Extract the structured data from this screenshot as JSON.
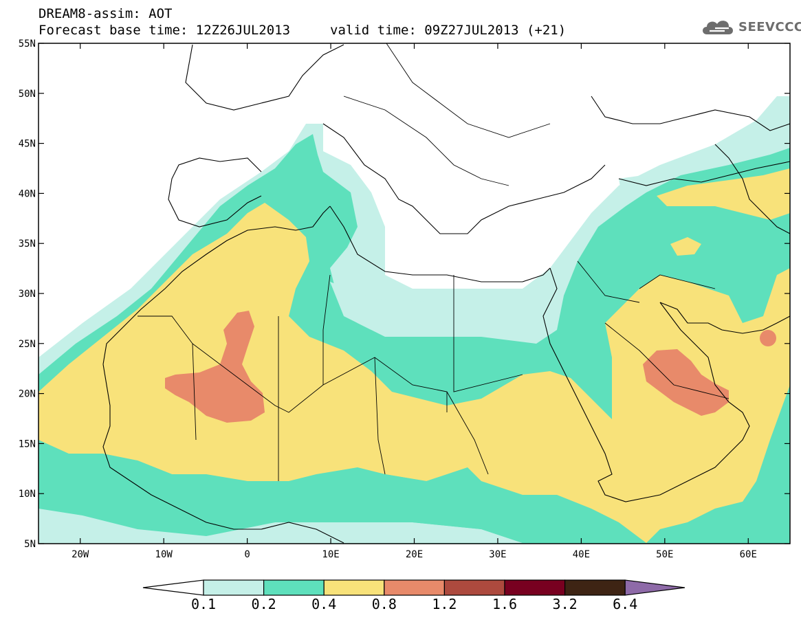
{
  "header": {
    "title": "DREAM8-assim: AOT",
    "base_time": "Forecast base time: 12Z26JUL2013",
    "valid_time": "valid time: 09Z27JUL2013 (+21)",
    "logo_text": "SEEVCCC",
    "logo_icon": "cloud-icon"
  },
  "map": {
    "lon_range": [
      -25,
      65
    ],
    "lat_range": [
      5,
      55
    ],
    "lon_ticks": [
      "20W",
      "10W",
      "0",
      "10E",
      "20E",
      "30E",
      "40E",
      "50E",
      "60E"
    ],
    "lon_tick_values": [
      -20,
      -10,
      0,
      10,
      20,
      30,
      40,
      50,
      60
    ],
    "lat_ticks": [
      "5N",
      "10N",
      "15N",
      "20N",
      "25N",
      "30N",
      "35N",
      "40N",
      "45N",
      "50N",
      "55N"
    ],
    "lat_tick_values": [
      5,
      10,
      15,
      20,
      25,
      30,
      35,
      40,
      45,
      50,
      55
    ]
  },
  "colorbar": {
    "labels": [
      "0.1",
      "0.2",
      "0.4",
      "0.8",
      "1.2",
      "1.6",
      "3.2",
      "6.4"
    ],
    "colors": [
      "#ffffff",
      "#c5f0e8",
      "#5ee0bc",
      "#f8e27a",
      "#e88a6a",
      "#ad4a3e",
      "#780020",
      "#3e2414",
      "#8e6aa8"
    ],
    "levels": {
      "below_0.1": "#ffffff",
      "0.1-0.2": "#c5f0e8",
      "0.2-0.4": "#5ee0bc",
      "0.4-0.8": "#f8e27a",
      "0.8-1.2": "#e88a6a",
      "1.2-1.6": "#ad4a3e",
      "1.6-3.2": "#780020",
      "3.2-6.4": "#3e2414",
      "above_6.4": "#8e6aa8"
    }
  }
}
